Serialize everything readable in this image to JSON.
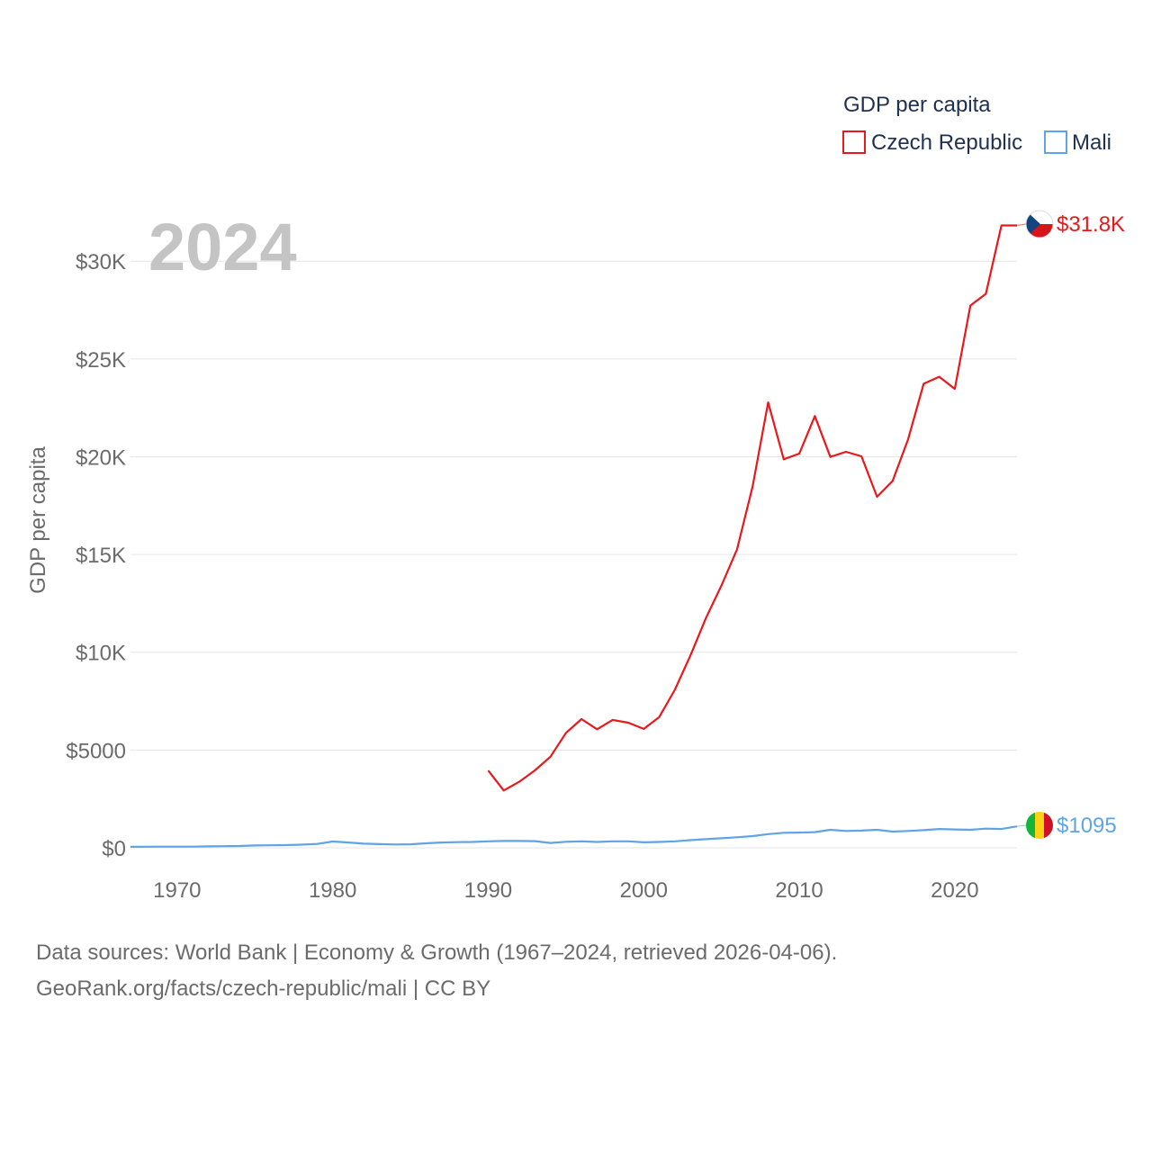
{
  "chart_data": {
    "type": "line",
    "year_label": "2024",
    "legend_title": "GDP per capita",
    "ylabel": "GDP per capita",
    "xlabel": "",
    "xlim": [
      1967,
      2024
    ],
    "ylim": [
      0,
      32000
    ],
    "y_ticks": [
      {
        "value": 0,
        "label": "$0"
      },
      {
        "value": 5000,
        "label": "$5000"
      },
      {
        "value": 10000,
        "label": "$10K"
      },
      {
        "value": 15000,
        "label": "$15K"
      },
      {
        "value": 20000,
        "label": "$20K"
      },
      {
        "value": 25000,
        "label": "$25K"
      },
      {
        "value": 30000,
        "label": "$30K"
      }
    ],
    "x_ticks": [
      {
        "value": 1970,
        "label": "1970"
      },
      {
        "value": 1980,
        "label": "1980"
      },
      {
        "value": 1990,
        "label": "1990"
      },
      {
        "value": 2000,
        "label": "2000"
      },
      {
        "value": 2010,
        "label": "2010"
      },
      {
        "value": 2020,
        "label": "2020"
      }
    ],
    "series": [
      {
        "name": "Czech Republic",
        "color": "#e8191c",
        "end_label": "$31.8K",
        "flag": "czech-flag",
        "x": [
          1990,
          1991,
          1992,
          1993,
          1994,
          1995,
          1996,
          1997,
          1998,
          1999,
          2000,
          2001,
          2002,
          2003,
          2004,
          2005,
          2006,
          2007,
          2008,
          2009,
          2010,
          2011,
          2012,
          2013,
          2014,
          2015,
          2016,
          2017,
          2018,
          2019,
          2020,
          2021,
          2022,
          2023,
          2024
        ],
        "values": [
          3950,
          2930,
          3380,
          3960,
          4660,
          5880,
          6580,
          6060,
          6540,
          6400,
          6080,
          6690,
          8080,
          9830,
          11750,
          13420,
          15260,
          18470,
          22780,
          19870,
          20160,
          22080,
          19990,
          20250,
          20020,
          17950,
          18760,
          20890,
          23730,
          24090,
          23470,
          27730,
          28330,
          31830,
          31830
        ]
      },
      {
        "name": "Mali",
        "color": "#5fa4e6",
        "end_label": "$1095",
        "flag": "mali-flag",
        "x": [
          1967,
          1968,
          1969,
          1970,
          1971,
          1972,
          1973,
          1974,
          1975,
          1976,
          1977,
          1978,
          1979,
          1980,
          1981,
          1982,
          1983,
          1984,
          1985,
          1986,
          1987,
          1988,
          1989,
          1990,
          1991,
          1992,
          1993,
          1994,
          1995,
          1996,
          1997,
          1998,
          1999,
          2000,
          2001,
          2002,
          2003,
          2004,
          2005,
          2006,
          2007,
          2008,
          2009,
          2010,
          2011,
          2012,
          2013,
          2014,
          2015,
          2016,
          2017,
          2018,
          2019,
          2020,
          2021,
          2022,
          2023,
          2024
        ],
        "values": [
          50,
          55,
          58,
          60,
          62,
          75,
          85,
          90,
          120,
          130,
          140,
          160,
          200,
          320,
          270,
          210,
          190,
          170,
          180,
          230,
          270,
          290,
          300,
          330,
          350,
          350,
          340,
          250,
          310,
          330,
          300,
          330,
          330,
          280,
          300,
          330,
          390,
          440,
          490,
          540,
          600,
          700,
          770,
          780,
          800,
          920,
          860,
          880,
          920,
          830,
          860,
          900,
          960,
          940,
          920,
          980,
          960,
          1095
        ]
      }
    ]
  },
  "captions": {
    "line1": "Data sources: World Bank | Economy & Growth (1967–2024, retrieved 2026-04-06).",
    "line2": "GeoRank.org/facts/czech-republic/mali | CC BY"
  }
}
